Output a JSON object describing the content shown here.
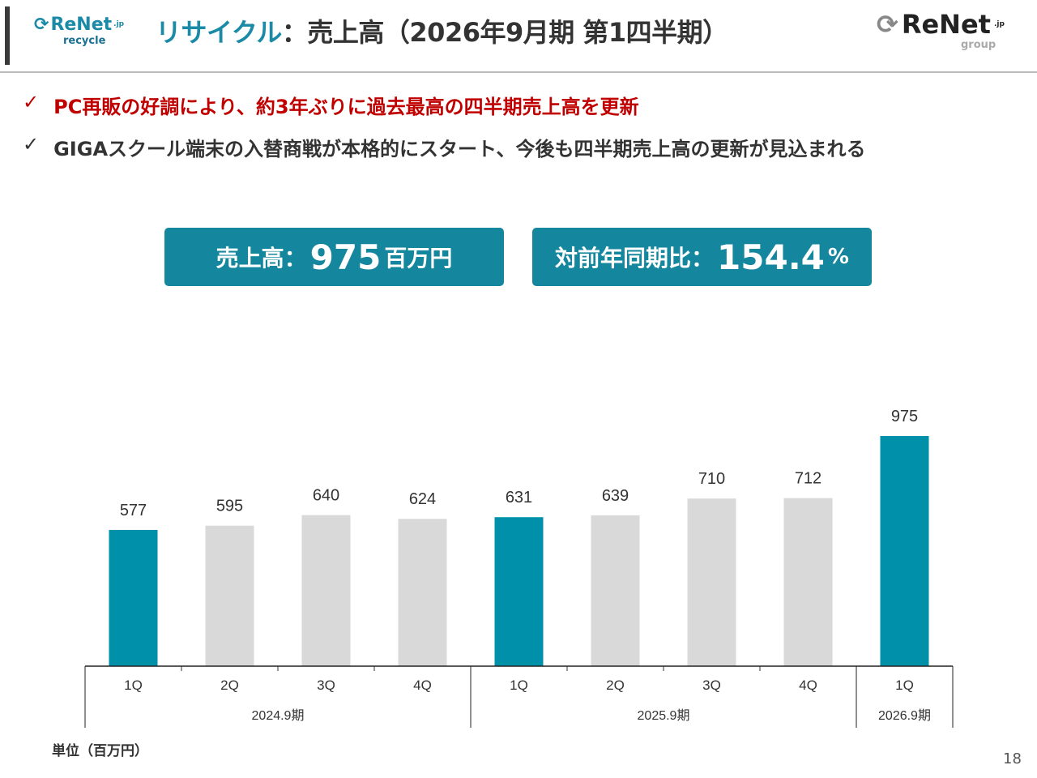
{
  "header": {
    "logo_left_text": "ReNet",
    "logo_left_suffix": ".jp",
    "logo_left_sub": "recycle",
    "title_teal": "リサイクル",
    "title_rest": "：売上高（2026年9月期 第1四半期）",
    "logo_right_text": "ReNet",
    "logo_right_suffix": ".jp",
    "logo_right_sub": "group"
  },
  "bullets": [
    {
      "mark": "✓",
      "text": "PC再販の好調により、約3年ぶりに過去最高の四半期売上高を更新",
      "color": "#c00000"
    },
    {
      "mark": "✓",
      "text": "GIGAスクール端末の入替商戦が本格的にスタート、今後も四半期売上高の更新が見込まれる",
      "color": "#333333"
    }
  ],
  "kpis": [
    {
      "label": "売上高：",
      "value": "975",
      "unit": "百万円"
    },
    {
      "label": "対前年同期比：",
      "value": "154.4",
      "unit": "%"
    }
  ],
  "chart_data": {
    "type": "bar",
    "categories": [
      "1Q",
      "2Q",
      "3Q",
      "4Q",
      "1Q",
      "2Q",
      "3Q",
      "4Q",
      "1Q"
    ],
    "groups": [
      {
        "label": "2024.9期",
        "count": 4
      },
      {
        "label": "2025.9期",
        "count": 4
      },
      {
        "label": "2026.9期",
        "count": 1
      }
    ],
    "values": [
      577,
      595,
      640,
      624,
      631,
      639,
      710,
      712,
      975
    ],
    "highlight": [
      true,
      false,
      false,
      false,
      true,
      false,
      false,
      false,
      true
    ],
    "colors": {
      "highlight": "#0090aa",
      "normal": "#d9d9d9"
    },
    "ylim": [
      0,
      975
    ],
    "grid": false,
    "unit_label": "単位（百万円）"
  },
  "page_number": "18"
}
